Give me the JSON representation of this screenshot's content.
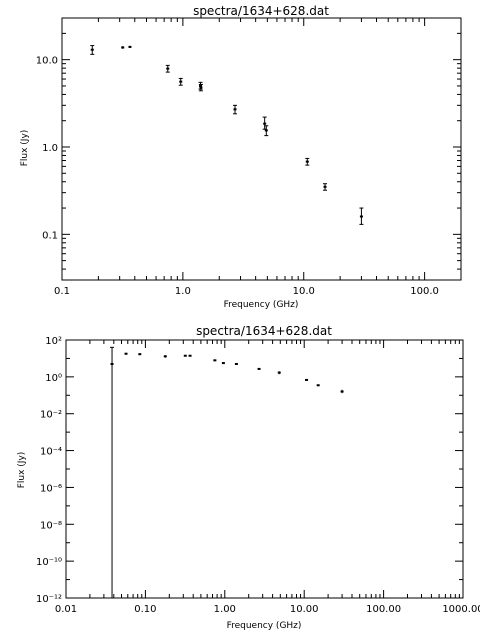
{
  "chart_data": [
    {
      "type": "scatter",
      "title": "spectra/1634+628.dat",
      "xlabel": "Frequency (GHz)",
      "ylabel": "Flux (Jy)",
      "xscale": "log",
      "yscale": "log",
      "xlim": [
        0.1,
        200
      ],
      "ylim": [
        0.03,
        30
      ],
      "xticks": [
        0.1,
        1,
        10,
        100
      ],
      "xtick_labels": [
        "0.1",
        "1.0",
        "10.0",
        "100.0"
      ],
      "yticks": [
        0.1,
        1,
        10
      ],
      "ytick_labels": [
        "0.1",
        "1.0",
        "10.0"
      ],
      "points": [
        {
          "x": 0.178,
          "y": 13.0,
          "lo": 11.5,
          "hi": 14.5
        },
        {
          "x": 0.318,
          "y": 13.8,
          "lo": 13.3,
          "hi": 14.3
        },
        {
          "x": 0.365,
          "y": 14.0,
          "lo": 13.6,
          "hi": 14.4
        },
        {
          "x": 0.75,
          "y": 7.9,
          "lo": 7.2,
          "hi": 8.6
        },
        {
          "x": 0.96,
          "y": 5.6,
          "lo": 5.1,
          "hi": 6.1
        },
        {
          "x": 1.4,
          "y": 5.0,
          "lo": 4.6,
          "hi": 5.5
        },
        {
          "x": 1.41,
          "y": 4.8,
          "lo": 4.4,
          "hi": 5.2
        },
        {
          "x": 2.7,
          "y": 2.7,
          "lo": 2.4,
          "hi": 3.0
        },
        {
          "x": 4.75,
          "y": 1.85,
          "lo": 1.6,
          "hi": 2.2
        },
        {
          "x": 4.9,
          "y": 1.55,
          "lo": 1.35,
          "hi": 1.75
        },
        {
          "x": 10.7,
          "y": 0.68,
          "lo": 0.62,
          "hi": 0.74
        },
        {
          "x": 15.0,
          "y": 0.35,
          "lo": 0.32,
          "hi": 0.38
        },
        {
          "x": 30.0,
          "y": 0.16,
          "lo": 0.13,
          "hi": 0.2
        }
      ]
    },
    {
      "type": "scatter",
      "title": "spectra/1634+628.dat",
      "xlabel": "Frequency (GHz)",
      "ylabel": "Flux (Jy)",
      "xscale": "log",
      "yscale": "log",
      "xlim": [
        0.01,
        1000
      ],
      "ylim": [
        1e-12,
        100
      ],
      "xticks": [
        0.01,
        0.1,
        1,
        10,
        100,
        1000
      ],
      "xtick_labels": [
        "0.01",
        "0.10",
        "1.00",
        "10.00",
        "100.00",
        "1000.00"
      ],
      "yticks": [
        1e-12,
        1e-10,
        1e-08,
        1e-06,
        0.0001,
        0.01,
        1,
        100
      ],
      "ytick_labels": [
        "10⁻¹²",
        "10⁻¹⁰",
        "10⁻⁸",
        "10⁻⁶",
        "10⁻⁴",
        "10⁻²",
        "10⁰",
        "10²"
      ],
      "points": [
        {
          "x": 0.038,
          "y": 5.0,
          "lo": 1e-12,
          "hi": 40.0
        },
        {
          "x": 0.057,
          "y": 18.0,
          "lo": 16.0,
          "hi": 20.0
        },
        {
          "x": 0.085,
          "y": 17.0,
          "lo": 15.0,
          "hi": 19.0
        },
        {
          "x": 0.178,
          "y": 13.0,
          "lo": 11.0,
          "hi": 15.0
        },
        {
          "x": 0.318,
          "y": 14.0,
          "lo": 13.0,
          "hi": 15.0
        },
        {
          "x": 0.365,
          "y": 14.0,
          "lo": 13.0,
          "hi": 15.0
        },
        {
          "x": 0.75,
          "y": 7.9,
          "lo": 7.0,
          "hi": 8.8
        },
        {
          "x": 0.96,
          "y": 5.6,
          "lo": 5.0,
          "hi": 6.2
        },
        {
          "x": 1.4,
          "y": 5.0,
          "lo": 4.5,
          "hi": 5.5
        },
        {
          "x": 2.7,
          "y": 2.7,
          "lo": 2.4,
          "hi": 3.0
        },
        {
          "x": 4.85,
          "y": 1.7,
          "lo": 1.4,
          "hi": 2.0
        },
        {
          "x": 10.7,
          "y": 0.68,
          "lo": 0.6,
          "hi": 0.76
        },
        {
          "x": 15.0,
          "y": 0.35,
          "lo": 0.31,
          "hi": 0.39
        },
        {
          "x": 30.0,
          "y": 0.16,
          "lo": 0.13,
          "hi": 0.2
        }
      ]
    }
  ]
}
